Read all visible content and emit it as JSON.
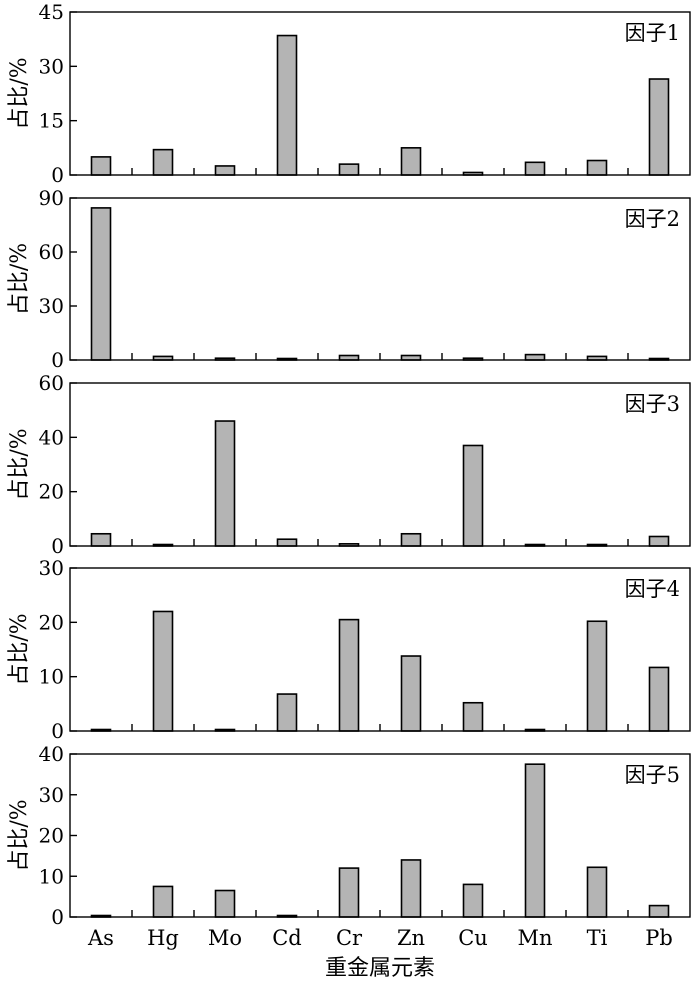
{
  "chart_data": {
    "type": "bar",
    "categories": [
      "As",
      "Hg",
      "Mo",
      "Cd",
      "Cr",
      "Zn",
      "Cu",
      "Mn",
      "Ti",
      "Pb"
    ],
    "xlabel": "重金属元素",
    "ylabel": "占比/%",
    "bar_color": "#b4b4b4",
    "panels": [
      {
        "title": "因子1",
        "ylim": [
          0,
          45
        ],
        "yticks": [
          0,
          15,
          30,
          45
        ],
        "values": [
          5.0,
          7.0,
          2.5,
          38.5,
          3.0,
          7.5,
          0.7,
          3.5,
          4.0,
          26.5
        ]
      },
      {
        "title": "因子2",
        "ylim": [
          0,
          90
        ],
        "yticks": [
          0,
          30,
          60,
          90
        ],
        "values": [
          84.5,
          2.0,
          1.0,
          0,
          2.5,
          2.5,
          1.0,
          3.0,
          2.0,
          0.5
        ]
      },
      {
        "title": "因子3",
        "ylim": [
          0,
          60
        ],
        "yticks": [
          0,
          20,
          40,
          60
        ],
        "values": [
          4.5,
          0,
          46.0,
          2.5,
          0.8,
          4.5,
          37.0,
          0,
          0.2,
          3.5
        ]
      },
      {
        "title": "因子4",
        "ylim": [
          0,
          30
        ],
        "yticks": [
          0,
          10,
          20,
          30
        ],
        "values": [
          0,
          22.0,
          0,
          6.8,
          20.5,
          13.8,
          5.2,
          0,
          20.2,
          11.7
        ]
      },
      {
        "title": "因子5",
        "ylim": [
          0,
          40
        ],
        "yticks": [
          0,
          10,
          20,
          30,
          40
        ],
        "values": [
          0,
          7.5,
          6.5,
          0,
          12.0,
          14.0,
          8.0,
          37.5,
          12.2,
          2.8
        ]
      }
    ]
  }
}
